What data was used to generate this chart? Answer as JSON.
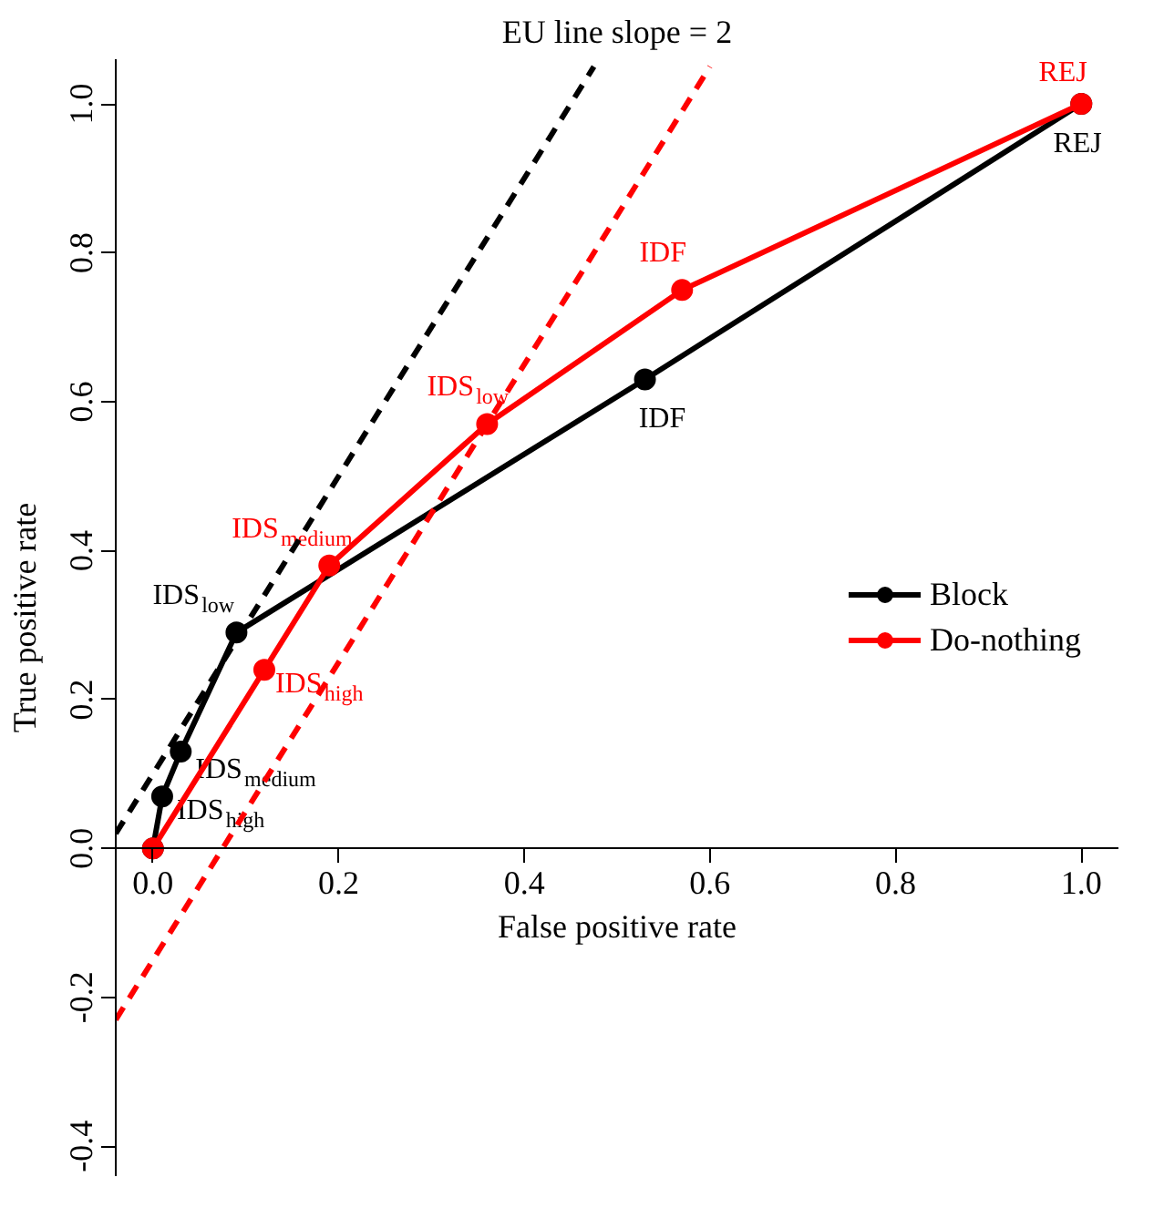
{
  "chart_data": {
    "type": "line",
    "title": "EU line slope = 2",
    "xlabel": "False positive rate",
    "ylabel": "True positive rate",
    "xlim": [
      -0.04,
      1.04
    ],
    "ylim": [
      -0.44,
      1.06
    ],
    "xticks": [
      {
        "value": 0,
        "label": "0.0"
      },
      0.2,
      0.4,
      0.6,
      0.8,
      {
        "value": 1,
        "label": "1.0"
      }
    ],
    "yticks": [
      -0.4,
      -0.2,
      {
        "value": 0,
        "label": "0.0"
      },
      0.2,
      0.4,
      0.6,
      0.8,
      {
        "value": 1,
        "label": "1.0"
      }
    ],
    "grid": false,
    "legend": "right",
    "marker": "circle",
    "line_style": "solid",
    "series": [
      {
        "name": "Block",
        "color": "#000000",
        "x": [
          0,
          0.01,
          0.03,
          0.09,
          0.53,
          1
        ],
        "values": [
          0,
          0.07,
          0.13,
          0.29,
          0.63,
          1
        ],
        "value_labels": [
          null,
          "IDS$_{high}$",
          "IDS$_{medium}$",
          "IDS$_{low}$",
          "IDF",
          "REJ"
        ]
      },
      {
        "name": "Do-nothing",
        "color": "#ff0000",
        "x": [
          0,
          0.12,
          0.19,
          0.36,
          0.57,
          1
        ],
        "values": [
          0,
          0.24,
          0.38,
          0.57,
          0.75,
          1
        ],
        "value_labels": [
          null,
          "IDS$_{high}$",
          "IDS$_{medium}$",
          "IDS$_{low}$",
          "IDF",
          "REJ"
        ]
      },
      {
        "color": "#000000",
        "line_style": "dashed",
        "marker": "none",
        "x": [
          -0.04,
          0.475
        ],
        "values": [
          0.02,
          1.05
        ]
      },
      {
        "color": "#ff0000",
        "line_style": "dashed",
        "marker": "none",
        "x": [
          -0.04,
          0.6
        ],
        "values": [
          -0.23,
          1.05
        ]
      }
    ]
  }
}
